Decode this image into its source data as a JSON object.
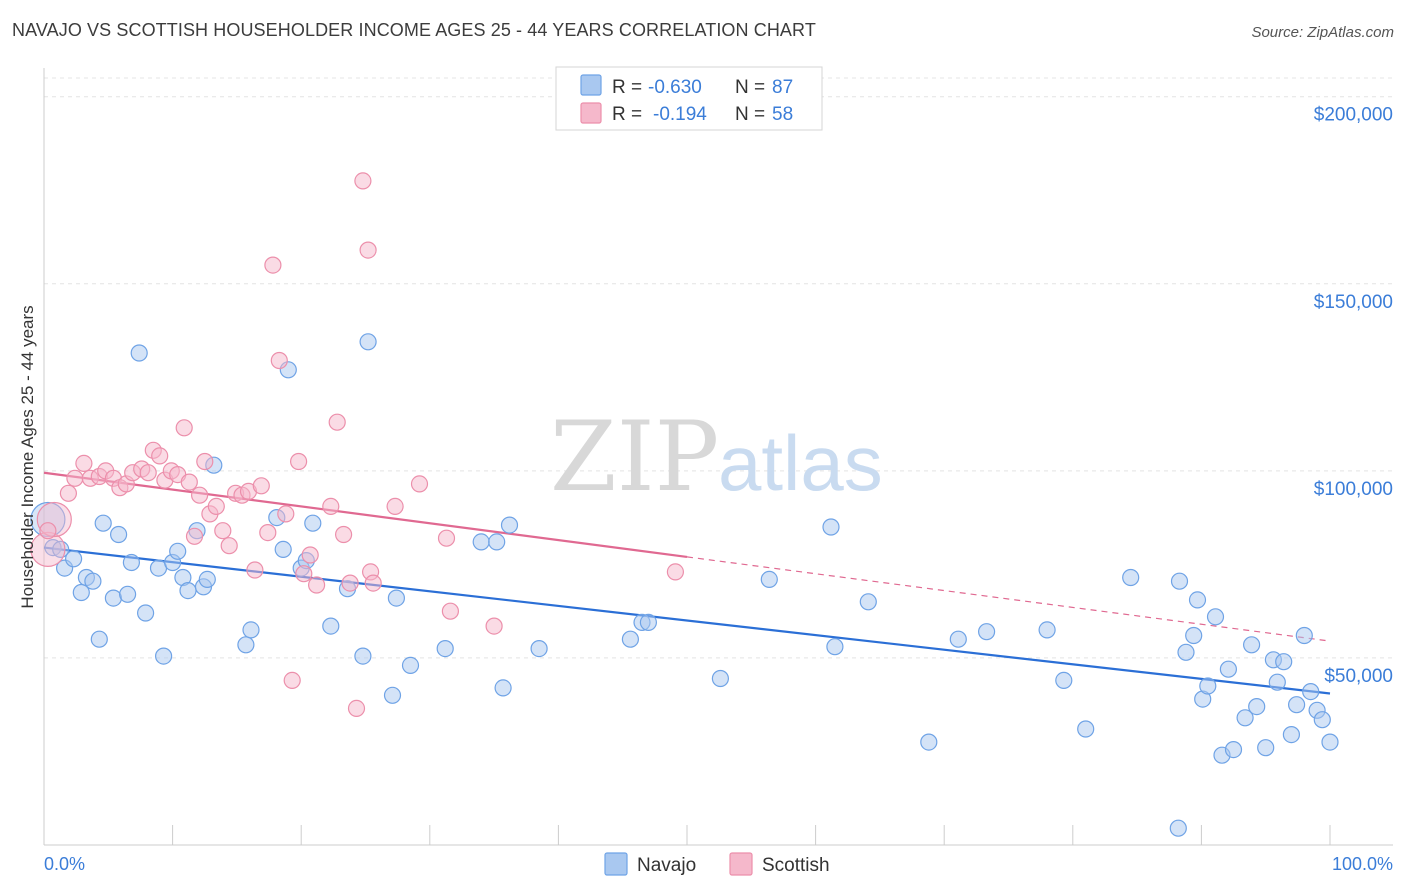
{
  "title": "NAVAJO VS SCOTTISH HOUSEHOLDER INCOME AGES 25 - 44 YEARS CORRELATION CHART",
  "source": "Source: ZipAtlas.com",
  "watermark": {
    "zip": "ZIP",
    "atlas": "atlas"
  },
  "legend": {
    "rows": [
      {
        "r_label": "R =",
        "r_value": "-0.630",
        "n_label": "N =",
        "n_value": "87",
        "color": "#a9c8f0"
      },
      {
        "r_label": "R =",
        "r_value": "-0.194",
        "n_label": "N =",
        "n_value": "58",
        "color": "#f5b8cb"
      }
    ]
  },
  "bottom_legend": [
    {
      "label": "Navajo",
      "color": "#a9c8f0"
    },
    {
      "label": "Scottish",
      "color": "#f5b8cb"
    }
  ],
  "chart_data": {
    "type": "scatter",
    "title": "NAVAJO VS SCOTTISH HOUSEHOLDER INCOME AGES 25 - 44 YEARS CORRELATION CHART",
    "xlabel": "",
    "ylabel": "Householder Income Ages 25 - 44 years",
    "x_tick_labels": [
      "0.0%",
      "100.0%"
    ],
    "y_tick_labels": [
      "$50,000",
      "$100,000",
      "$150,000",
      "$200,000"
    ],
    "y_ticks": [
      50000,
      100000,
      150000,
      200000
    ],
    "xlim": [
      0,
      100
    ],
    "ylim": [
      0,
      205000
    ],
    "grid": true,
    "legend_position": "top-center",
    "series": [
      {
        "name": "Navajo",
        "color": "#6fa3e6",
        "fill": "#a9c8f0",
        "trend": {
          "x": [
            0,
            100
          ],
          "y": [
            79500,
            40500
          ],
          "color": "#2b6fd6"
        },
        "points": [
          [
            0.3,
            87000
          ],
          [
            0.7,
            79500
          ],
          [
            1.3,
            79000
          ],
          [
            1.6,
            74000
          ],
          [
            2.3,
            76500
          ],
          [
            2.9,
            67500
          ],
          [
            3.3,
            71500
          ],
          [
            3.8,
            70500
          ],
          [
            4.3,
            55000
          ],
          [
            4.6,
            86000
          ],
          [
            5.4,
            66000
          ],
          [
            5.8,
            83000
          ],
          [
            6.5,
            67000
          ],
          [
            6.8,
            75500
          ],
          [
            7.4,
            131500
          ],
          [
            7.9,
            62000
          ],
          [
            8.9,
            74000
          ],
          [
            9.3,
            50500
          ],
          [
            10.0,
            75500
          ],
          [
            10.4,
            78500
          ],
          [
            10.8,
            71500
          ],
          [
            11.2,
            68000
          ],
          [
            11.9,
            84000
          ],
          [
            12.4,
            69000
          ],
          [
            12.7,
            71000
          ],
          [
            13.2,
            101500
          ],
          [
            15.7,
            53500
          ],
          [
            16.1,
            57500
          ],
          [
            18.1,
            87500
          ],
          [
            18.6,
            79000
          ],
          [
            19.0,
            127000
          ],
          [
            20.0,
            74000
          ],
          [
            20.4,
            76000
          ],
          [
            20.9,
            86000
          ],
          [
            22.3,
            58500
          ],
          [
            23.6,
            68500
          ],
          [
            24.8,
            50500
          ],
          [
            25.2,
            134500
          ],
          [
            27.1,
            40000
          ],
          [
            27.4,
            66000
          ],
          [
            28.5,
            48000
          ],
          [
            31.2,
            52500
          ],
          [
            34.0,
            81000
          ],
          [
            35.2,
            81000
          ],
          [
            35.7,
            42000
          ],
          [
            36.2,
            85500
          ],
          [
            38.5,
            52500
          ],
          [
            45.6,
            55000
          ],
          [
            46.5,
            59500
          ],
          [
            47.0,
            59500
          ],
          [
            52.6,
            44500
          ],
          [
            56.4,
            71000
          ],
          [
            61.2,
            85000
          ],
          [
            61.5,
            53000
          ],
          [
            64.1,
            65000
          ],
          [
            68.8,
            27500
          ],
          [
            71.1,
            55000
          ],
          [
            73.3,
            57000
          ],
          [
            78.0,
            57500
          ],
          [
            79.3,
            44000
          ],
          [
            81.0,
            31000
          ],
          [
            84.5,
            71500
          ],
          [
            88.2,
            4500
          ],
          [
            88.3,
            70500
          ],
          [
            88.8,
            51500
          ],
          [
            89.4,
            56000
          ],
          [
            89.7,
            65500
          ],
          [
            90.1,
            39000
          ],
          [
            90.5,
            42500
          ],
          [
            91.1,
            61000
          ],
          [
            91.6,
            24000
          ],
          [
            92.1,
            47000
          ],
          [
            92.5,
            25500
          ],
          [
            93.4,
            34000
          ],
          [
            93.9,
            53500
          ],
          [
            94.3,
            37000
          ],
          [
            95.0,
            26000
          ],
          [
            95.6,
            49500
          ],
          [
            95.9,
            43500
          ],
          [
            96.4,
            49000
          ],
          [
            97.0,
            29500
          ],
          [
            97.4,
            37500
          ],
          [
            98.0,
            56000
          ],
          [
            98.5,
            41000
          ],
          [
            99.0,
            36000
          ],
          [
            99.4,
            33500
          ],
          [
            100.0,
            27500
          ]
        ]
      },
      {
        "name": "Scottish",
        "color": "#ec8fab",
        "fill": "#f5b8cb",
        "trend": {
          "x": [
            0,
            50
          ],
          "y": [
            99500,
            77000
          ],
          "color": "#e06991"
        },
        "trend_extension": {
          "x": [
            50,
            100
          ],
          "y": [
            77000,
            54500
          ],
          "color": "#e06991"
        },
        "points": [
          [
            0.3,
            79000
          ],
          [
            0.8,
            87000
          ],
          [
            1.9,
            94000
          ],
          [
            2.4,
            98000
          ],
          [
            3.1,
            102000
          ],
          [
            3.6,
            98000
          ],
          [
            4.3,
            98500
          ],
          [
            4.8,
            100000
          ],
          [
            5.4,
            98000
          ],
          [
            5.9,
            95500
          ],
          [
            6.4,
            96500
          ],
          [
            6.9,
            99500
          ],
          [
            7.6,
            100500
          ],
          [
            8.1,
            99500
          ],
          [
            8.5,
            105500
          ],
          [
            9.0,
            104000
          ],
          [
            9.4,
            97500
          ],
          [
            9.9,
            100000
          ],
          [
            10.4,
            99000
          ],
          [
            10.9,
            111500
          ],
          [
            11.3,
            97000
          ],
          [
            11.7,
            82500
          ],
          [
            12.1,
            93500
          ],
          [
            12.5,
            102500
          ],
          [
            12.9,
            88500
          ],
          [
            13.4,
            90500
          ],
          [
            13.9,
            84000
          ],
          [
            14.4,
            80000
          ],
          [
            14.9,
            94000
          ],
          [
            15.4,
            93500
          ],
          [
            15.9,
            94500
          ],
          [
            16.4,
            73500
          ],
          [
            16.9,
            96000
          ],
          [
            17.4,
            83500
          ],
          [
            17.8,
            155000
          ],
          [
            18.3,
            129500
          ],
          [
            18.8,
            88500
          ],
          [
            19.3,
            44000
          ],
          [
            19.8,
            102500
          ],
          [
            20.2,
            72500
          ],
          [
            20.7,
            77500
          ],
          [
            21.2,
            69500
          ],
          [
            22.3,
            90500
          ],
          [
            22.8,
            113000
          ],
          [
            23.3,
            83000
          ],
          [
            23.8,
            70000
          ],
          [
            24.8,
            177500
          ],
          [
            25.2,
            159000
          ],
          [
            25.4,
            73000
          ],
          [
            25.6,
            70000
          ],
          [
            24.3,
            36500
          ],
          [
            27.3,
            90500
          ],
          [
            29.2,
            96500
          ],
          [
            31.3,
            82000
          ],
          [
            31.6,
            62500
          ],
          [
            35.0,
            58500
          ],
          [
            49.1,
            73000
          ],
          [
            0.3,
            84000
          ]
        ]
      }
    ]
  }
}
